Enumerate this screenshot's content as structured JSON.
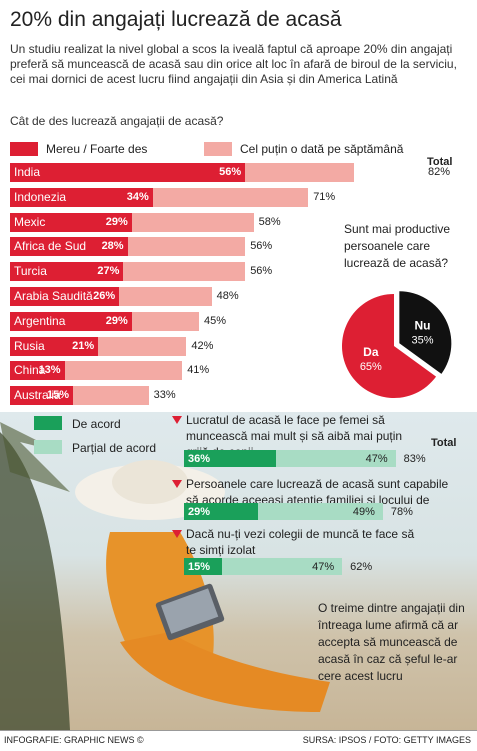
{
  "title": "20% din angajați lucrează de acasă",
  "intro": "Un studiu realizat la nivel global a scos la iveală faptul că aproape 20% din angajați preferă să muncească de acasă sau din orice alt loc în afară de biroul de la serviciu, cei mai dornici de acest lucru fiind angajații din Asia și din America Latină",
  "question1": "Cât de des lucrează angajații de acasă?",
  "legend1": {
    "often": "Mereu / Foarte des",
    "weekly": "Cel puțin o dată pe săptămână",
    "often_color": "#dd1f33",
    "weekly_color": "#f3aaa4"
  },
  "total_label": "Total",
  "pie_question": "Sunt mai productive persoanele care lucrează de acasă?",
  "legend2": {
    "agree": "De acord",
    "partial": "Parțial de acord",
    "agree_color": "#1aa05a",
    "partial_color": "#a8dcc4"
  },
  "statements": [
    "Lucratul de acasă le face pe femei să muncească mai mult și să aibă mai puțin grijă de copii",
    "Persoanele care lucrează de acasă sunt capabile să acorde aceeași atenție familiei și locului de muncă",
    "Dacă nu-ți vezi colegii de muncă te face să te simți izolat"
  ],
  "note": "O treime dintre angajații din întreaga lume afirmă că ar accepta să muncească de acasă în caz că șeful le-ar cere acest lucru",
  "source_left": "INFOGRAFIE: GRAPHIC NEWS ©",
  "source_right": "SURSA: IPSOS / FOTO: GETTY IMAGES",
  "chart_data": [
    {
      "type": "bar",
      "categories": [
        "India",
        "Indonezia",
        "Mexic",
        "Africa de Sud",
        "Turcia",
        "Arabia Saudită",
        "Argentina",
        "Rusia",
        "China",
        "Australia"
      ],
      "series": [
        {
          "name": "Mereu / Foarte des",
          "values": [
            56,
            34,
            29,
            28,
            27,
            26,
            29,
            21,
            13,
            15
          ]
        },
        {
          "name": "Total",
          "values": [
            82,
            71,
            58,
            56,
            56,
            48,
            45,
            42,
            41,
            33
          ]
        }
      ],
      "value_labels_often": [
        "56%",
        "34%",
        "29%",
        "28%",
        "27%",
        "26%",
        "29%",
        "21%",
        "13%",
        "15%"
      ],
      "value_labels_total": [
        "82%",
        "71%",
        "58%",
        "56%",
        "56%",
        "48%",
        "45%",
        "42%",
        "41%",
        "33%"
      ]
    },
    {
      "type": "pie",
      "labels": [
        "Nu",
        "Da"
      ],
      "values": [
        35,
        65
      ],
      "value_labels": [
        "35%",
        "65%"
      ],
      "colors": [
        "#111111",
        "#dd1f33"
      ]
    },
    {
      "type": "bar",
      "categories": [
        "Lucratul de acasă le face pe femei să muncească mai mult și să aibă mai puțin grijă de copii",
        "Persoanele care lucrează de acasă sunt capabile să acorde aceeași atenție familiei și locului de muncă",
        "Dacă nu-ți vezi colegii de muncă te face să te simți izolat"
      ],
      "series": [
        {
          "name": "De acord",
          "values": [
            36,
            29,
            15
          ]
        },
        {
          "name": "Parțial de acord",
          "values": [
            47,
            49,
            47
          ]
        },
        {
          "name": "Total",
          "values": [
            83,
            78,
            62
          ]
        }
      ],
      "value_labels_agree": [
        "36%",
        "29%",
        "15%"
      ],
      "value_labels_partial": [
        "47%",
        "49%",
        "47%"
      ],
      "value_labels_total": [
        "83%",
        "78%",
        "62%"
      ]
    }
  ]
}
